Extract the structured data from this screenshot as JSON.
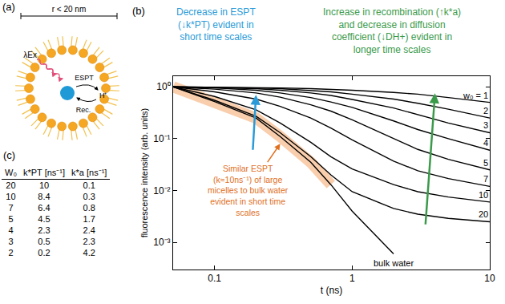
{
  "chart_data": {
    "type": "line",
    "label": "(b)",
    "xlabel": "t (ns)",
    "ylabel": "fluorescence intensity (arb. units)",
    "log": true,
    "grid": false,
    "xlim": [
      0.05,
      10
    ],
    "ylim": [
      0.0003,
      1.6
    ],
    "xticks": [
      0.1,
      1,
      10
    ],
    "yticks": [
      {
        "value": 1,
        "label": "10⁰"
      },
      {
        "value": 0.1,
        "label": "10⁻¹"
      },
      {
        "value": 0.01,
        "label": "10⁻²"
      },
      {
        "value": 0.001,
        "label": "10⁻³"
      }
    ],
    "x": [
      0.05,
      0.1,
      0.2,
      0.3,
      0.5,
      0.7,
      1,
      2,
      3,
      5,
      10
    ],
    "series": [
      {
        "name": "w₀ = 1",
        "color": "#000000",
        "line_style": "solid",
        "values": [
          1,
          0.99,
          0.97,
          0.95,
          0.92,
          0.89,
          0.86,
          0.78,
          0.72,
          0.62,
          0.5
        ]
      },
      {
        "name": "2",
        "color": "#000000",
        "line_style": "solid",
        "values": [
          1,
          0.98,
          0.95,
          0.92,
          0.85,
          0.8,
          0.72,
          0.58,
          0.48,
          0.37,
          0.25
        ]
      },
      {
        "name": "3",
        "color": "#000000",
        "line_style": "solid",
        "values": [
          1,
          0.97,
          0.92,
          0.86,
          0.76,
          0.68,
          0.57,
          0.39,
          0.29,
          0.2,
          0.13
        ]
      },
      {
        "name": "4",
        "color": "#000000",
        "line_style": "solid",
        "values": [
          1,
          0.95,
          0.86,
          0.76,
          0.62,
          0.51,
          0.4,
          0.22,
          0.15,
          0.1,
          0.06
        ]
      },
      {
        "name": "5",
        "color": "#000000",
        "line_style": "solid",
        "values": [
          1,
          0.9,
          0.76,
          0.63,
          0.45,
          0.34,
          0.23,
          0.1,
          0.062,
          0.04,
          0.025
        ]
      },
      {
        "name": "7",
        "color": "#000000",
        "line_style": "solid",
        "values": [
          1,
          0.8,
          0.58,
          0.42,
          0.25,
          0.16,
          0.095,
          0.037,
          0.024,
          0.017,
          0.012
        ]
      },
      {
        "name": "10",
        "color": "#000000",
        "line_style": "solid",
        "values": [
          1,
          0.65,
          0.36,
          0.2,
          0.085,
          0.045,
          0.026,
          0.013,
          0.0095,
          0.0075,
          0.006
        ]
      },
      {
        "name": "20",
        "color": "#000000",
        "line_style": "solid",
        "values": [
          1,
          0.55,
          0.27,
          0.13,
          0.045,
          0.02,
          0.0095,
          0.0045,
          0.0035,
          0.0029,
          0.0025
        ]
      },
      {
        "name": "bulk water",
        "color": "#000000",
        "line_style": "solid",
        "values": [
          1,
          0.52,
          0.25,
          0.11,
          0.035,
          0.013,
          0.004,
          0.0006,
          null,
          null,
          null
        ]
      }
    ],
    "highlight": {
      "series": "bulk water",
      "until": 0.7,
      "color": "#f7b98a"
    },
    "annotations": [
      {
        "text": "Decrease in ESPT (↓k*PT) evident in short time scales",
        "color": "#2a9bd8"
      },
      {
        "text": "Increase in recombination (↑k*a) and decrease in diffusion coefficient (↓DH+) evident in longer time scales",
        "color": "#3a9a4a"
      },
      {
        "text": "Similar ESPT (k≈10ns⁻¹) of large micelles to bulk water evident in short time scales",
        "color": "#e0701e"
      }
    ]
  },
  "diagram": {
    "label": "(a)",
    "scale_text": "r < 20 nm",
    "excitation": "λEx",
    "forward": "ESPT",
    "ion": "H⁺",
    "reverse": "Rec."
  },
  "table": {
    "label": "(c)",
    "header": [
      "W₀",
      "k*PT [ns⁻¹]",
      "k*a [ns⁻¹]"
    ],
    "rows": [
      [
        20,
        10,
        0.1
      ],
      [
        10,
        8.4,
        0.3
      ],
      [
        7,
        6.4,
        0.8
      ],
      [
        5,
        4.5,
        1.7
      ],
      [
        4,
        2.3,
        2.4
      ],
      [
        3,
        0.5,
        2.3
      ],
      [
        2,
        0.2,
        4.2
      ]
    ]
  }
}
